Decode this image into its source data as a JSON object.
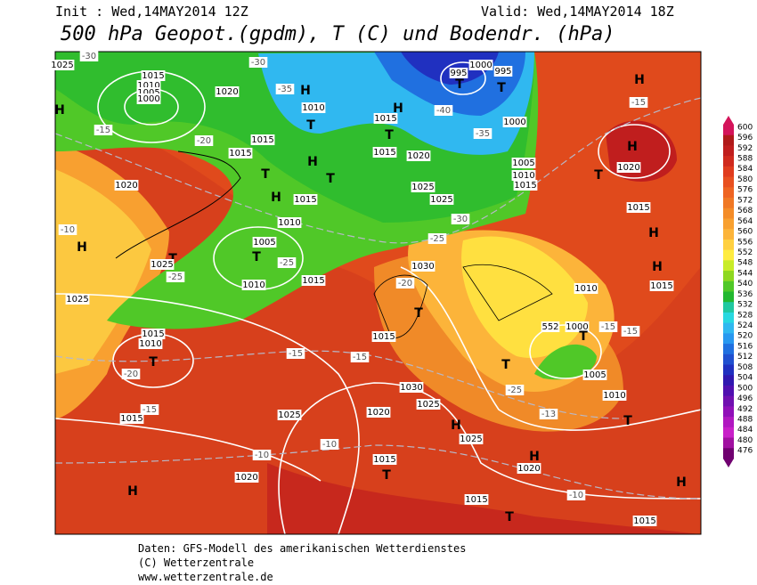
{
  "header": {
    "init": "Init : Wed,14MAY2014 12Z",
    "valid": "Valid: Wed,14MAY2014 18Z",
    "title": "500 hPa Geopot.(gpdm), T (C) und Bodendr. (hPa)"
  },
  "footer": {
    "line1": "Daten: GFS-Modell des amerikanischen Wetterdienstes",
    "line2": "(C) Wetterzentrale",
    "line3": "www.wetterzentrale.de"
  },
  "colorbar": {
    "labels": [
      600,
      596,
      592,
      588,
      584,
      580,
      576,
      572,
      568,
      564,
      560,
      556,
      552,
      548,
      544,
      540,
      536,
      532,
      528,
      524,
      520,
      516,
      512,
      508,
      504,
      500,
      496,
      492,
      488,
      484,
      480,
      476
    ],
    "colors": [
      "#d4145a",
      "#b01a1a",
      "#c01e1e",
      "#d02a1e",
      "#e03c1e",
      "#e85020",
      "#ee6422",
      "#f07824",
      "#f48c28",
      "#f8a030",
      "#fcb43a",
      "#ffd040",
      "#ffec40",
      "#c8ec28",
      "#8ed820",
      "#50c828",
      "#22b830",
      "#20c8a0",
      "#28d8e0",
      "#30b8f0",
      "#2898f0",
      "#2070e0",
      "#2050d0",
      "#2030c0",
      "#3018b0",
      "#5010b0",
      "#7010b0",
      "#9010b8",
      "#b018c0",
      "#c820c8",
      "#a010a0",
      "#700070"
    ]
  },
  "map_labels": [
    "1025",
    "1015",
    "1010",
    "1005",
    "1000",
    "1020",
    "H",
    "1010",
    "1015",
    "H",
    "995",
    "1000",
    "995",
    "T",
    "T",
    "H",
    "H",
    "1020",
    "T",
    "1015",
    "1015",
    "T",
    "H",
    "T",
    "1020",
    "1015",
    "1000",
    "1005",
    "1010",
    "1015",
    "1025",
    "1025",
    "T",
    "T",
    "H",
    "1015",
    "1010",
    "1005",
    "T",
    "1010",
    "1015",
    "1020",
    "H",
    "T",
    "1025",
    "1025",
    "1030",
    "T",
    "1015",
    "1030",
    "1025",
    "1025",
    "1020",
    "H",
    "1025",
    "1015",
    "T",
    "H",
    "1020",
    "T",
    "1010",
    "1005",
    "1000",
    "T",
    "T",
    "1015",
    "1010",
    "T",
    "1015",
    "H",
    "1020",
    "T",
    "1015",
    "1015",
    "H",
    "H",
    "H",
    "1015",
    "1010",
    "1015",
    "H",
    "552",
    "-30",
    "-30",
    "-35",
    "-40",
    "-35",
    "-15",
    "-20",
    "-15",
    "-10",
    "-25",
    "-25",
    "-20",
    "-15",
    "-15",
    "-20",
    "-15",
    "-10",
    "-10",
    "-10",
    "-13",
    "-25",
    "-15",
    "-15",
    "-30",
    "-25"
  ]
}
